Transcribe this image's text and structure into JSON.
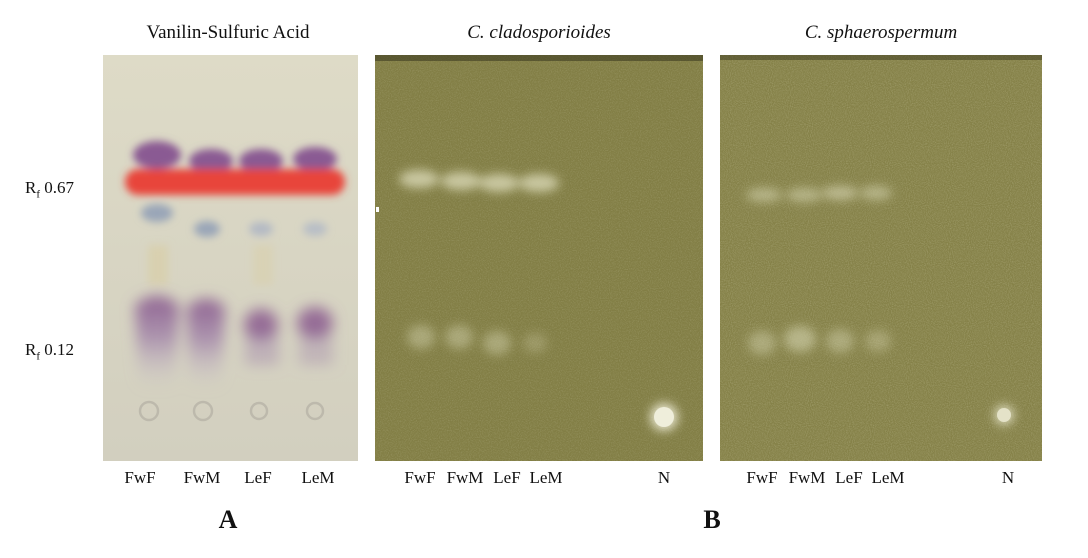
{
  "panels": {
    "a": {
      "title": "Vanilin-Sulfuric Acid",
      "letter": "A",
      "lanes": [
        "FwF",
        "FwM",
        "LeF",
        "LeM"
      ]
    },
    "b1": {
      "title": "C. cladosporioides",
      "lanes": [
        "FwF",
        "FwM",
        "LeF",
        "LeM",
        "N"
      ]
    },
    "b2": {
      "title": "C. sphaerospermum",
      "lanes": [
        "FwF",
        "FwM",
        "LeF",
        "LeM",
        "N"
      ]
    },
    "b_letter": "B"
  },
  "rf_labels": {
    "upper": {
      "prefix": "R",
      "sub": "f",
      "value": "0.67"
    },
    "lower": {
      "prefix": "R",
      "sub": "f",
      "value": "0.12"
    }
  },
  "colors": {
    "plate_a_bg": "#dcd9c4",
    "bioplate_bg": "#86824a",
    "purple_band": "#8a5a93",
    "red_band": "#e8453a",
    "blue_band": "#9aa6b8"
  }
}
